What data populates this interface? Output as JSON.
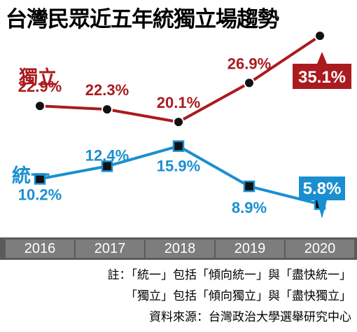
{
  "title": "台灣民眾近五年統獨立場趨勢",
  "notes": {
    "line1": "註：「統一」包括「傾向統一」與「盡快統一」",
    "line2": "「獨立」包括「傾向獨立」與「盡快獨立」",
    "source": "資料來源：台灣政治大學選舉研究中心"
  },
  "colors": {
    "independence": "#aa1b1f",
    "unification": "#1a8fd0",
    "year_band": "#5b5b5b",
    "year_cell": "#7d7d7d"
  },
  "chart_data": {
    "type": "line",
    "x": [
      "2016",
      "2017",
      "2018",
      "2019",
      "2020"
    ],
    "ylabel": "",
    "series": [
      {
        "name": "獨立",
        "values": [
          22.9,
          22.3,
          20.1,
          26.9,
          35.1
        ],
        "labels": [
          "22.9%",
          "22.3%",
          "20.1%",
          "26.9%",
          "35.1%"
        ],
        "highlight_last": true
      },
      {
        "name": "統一",
        "values": [
          10.2,
          12.4,
          15.9,
          8.9,
          5.8
        ],
        "labels": [
          "10.2%",
          "12.4%",
          "15.9%",
          "8.9%",
          "5.8%"
        ],
        "highlight_last": true
      }
    ]
  }
}
